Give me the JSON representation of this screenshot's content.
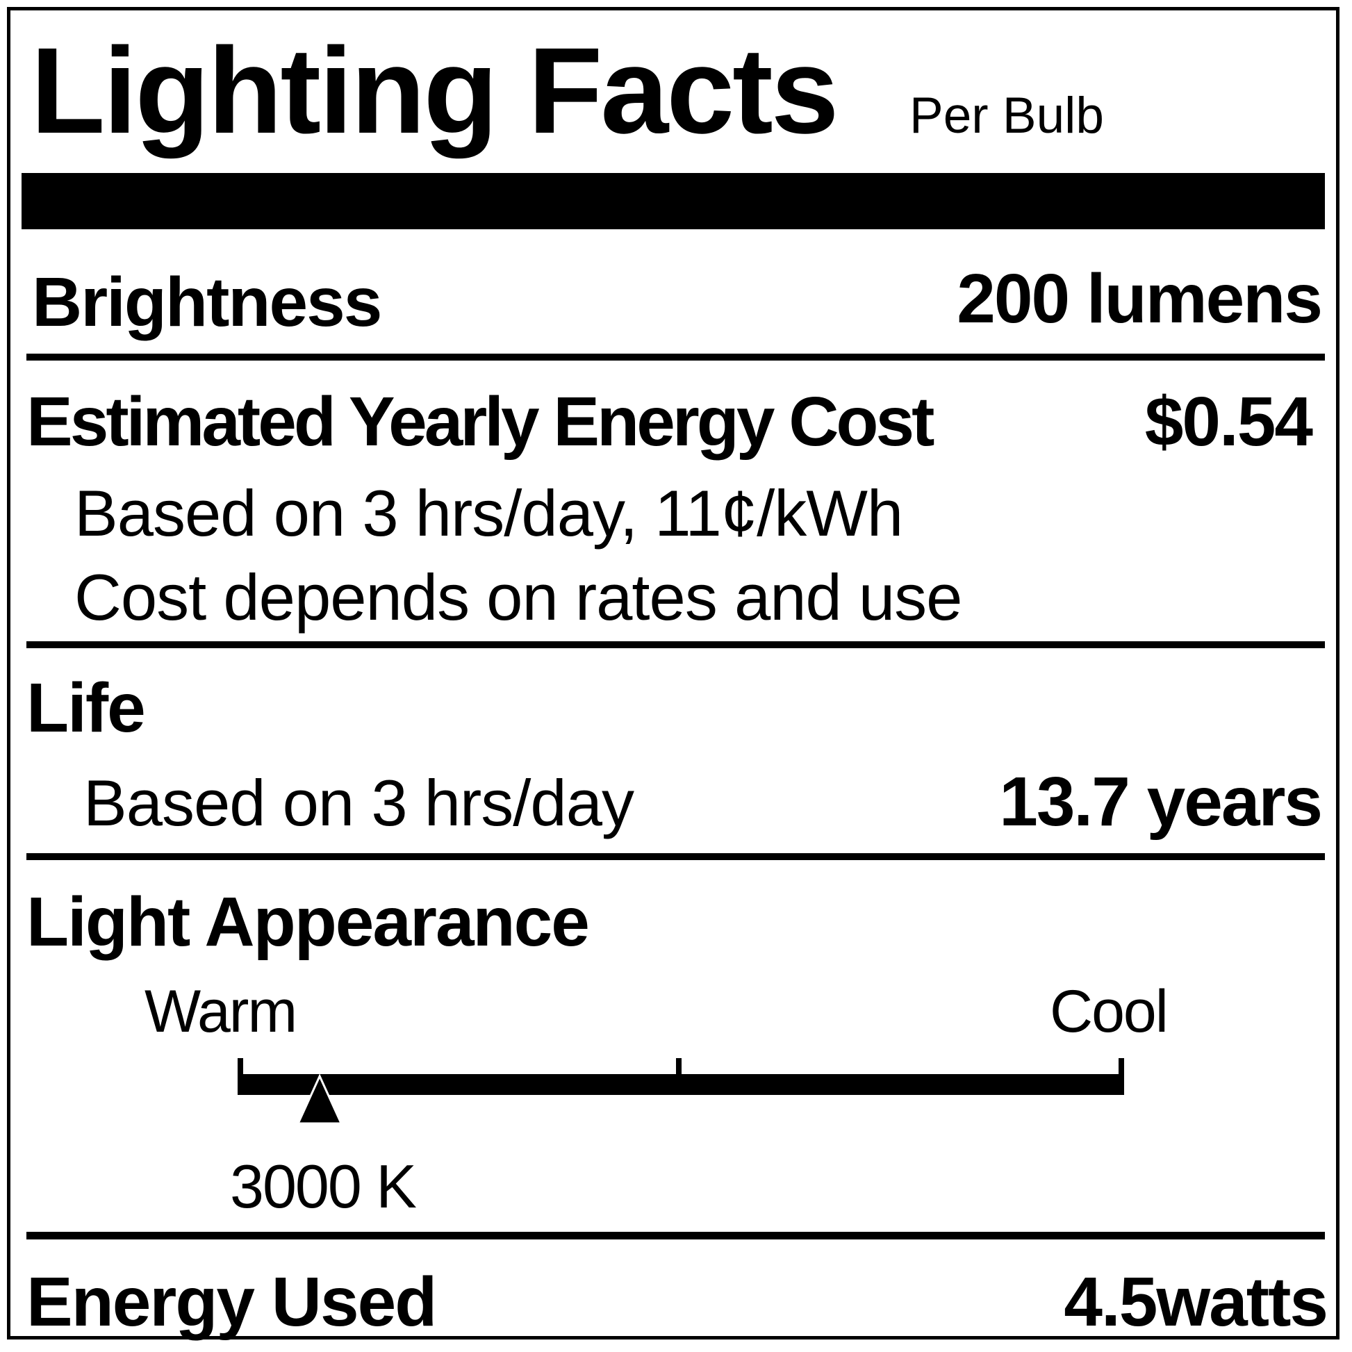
{
  "header": {
    "title": "Lighting Facts",
    "subtitle": "Per Bulb"
  },
  "brightness": {
    "label": "Brightness",
    "value": "200 lumens"
  },
  "energy_cost": {
    "label": "Estimated Yearly Energy Cost",
    "value": "$0.54",
    "note1": "Based on 3 hrs/day, 11¢/kWh",
    "note2": "Cost depends on rates and use"
  },
  "life": {
    "label": "Life",
    "note": "Based on 3 hrs/day",
    "value": "13.7 years"
  },
  "light_appearance": {
    "label": "Light Appearance",
    "warm_label": "Warm",
    "cool_label": "Cool",
    "value": "3000 K",
    "scale_position_fraction": 0.09
  },
  "energy_used": {
    "label": "Energy Used",
    "value": "4.5watts"
  }
}
